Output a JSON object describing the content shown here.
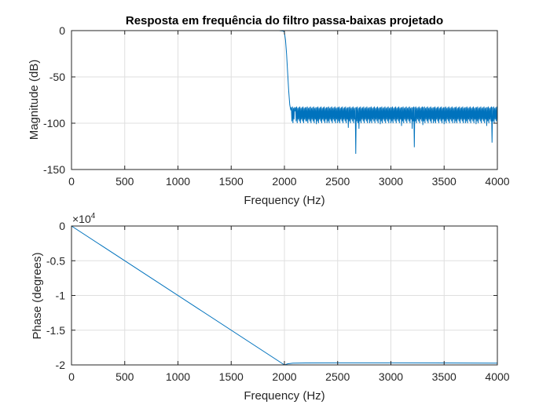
{
  "chart_data": [
    {
      "type": "line",
      "title": "Resposta em frequência do filtro passa-baixas projetado",
      "xlabel": "Frequency (Hz)",
      "ylabel": "Magnitude (dB)",
      "xlim": [
        0,
        4000
      ],
      "ylim": [
        -150,
        0
      ],
      "xticks": [
        0,
        500,
        1000,
        1500,
        2000,
        2500,
        3000,
        3500,
        4000
      ],
      "yticks": [
        0,
        -50,
        -100,
        -150
      ],
      "xtick_labels": [
        "0",
        "500",
        "1000",
        "1500",
        "2000",
        "2500",
        "3000",
        "3500",
        "4000"
      ],
      "ytick_labels": [
        "0",
        "-50",
        "-100",
        "-150"
      ],
      "grid": true,
      "line_color": "#0072BD",
      "series": [
        {
          "x": [
            0,
            500,
            1000,
            1500,
            1950,
            1990,
            2000,
            2010,
            2020,
            2030,
            2040,
            2050,
            2060,
            2100,
            2200,
            2300,
            2400,
            2500,
            2600,
            2670,
            2700,
            2800,
            2900,
            3000,
            3100,
            3200,
            3220,
            3300,
            3400,
            3500,
            3600,
            3700,
            3800,
            3900,
            3950,
            4000
          ],
          "y": [
            0,
            0,
            0,
            0,
            0,
            -0.5,
            -2,
            -10,
            -25,
            -45,
            -65,
            -80,
            -86,
            -87,
            -98,
            -101,
            -100,
            -100,
            -105,
            -133,
            -106,
            -100,
            -101,
            -100,
            -103,
            -106,
            -126,
            -102,
            -100,
            -101,
            -100,
            -100,
            -101,
            -103,
            -121,
            -100
          ],
          "envelope_top": -82
        }
      ]
    },
    {
      "type": "line",
      "xlabel": "Frequency (Hz)",
      "ylabel": "Phase (degrees)",
      "exponent_label": "×10^4",
      "xlim": [
        0,
        4000
      ],
      "ylim": [
        -2,
        0
      ],
      "xticks": [
        0,
        500,
        1000,
        1500,
        2000,
        2500,
        3000,
        3500,
        4000
      ],
      "yticks": [
        0,
        -0.5,
        -1,
        -1.5,
        -2
      ],
      "xtick_labels": [
        "0",
        "500",
        "1000",
        "1500",
        "2000",
        "2500",
        "3000",
        "3500",
        "4000"
      ],
      "ytick_labels": [
        "0",
        "-0.5",
        "-1",
        "-1.5",
        "-2"
      ],
      "grid": true,
      "line_color": "#0072BD",
      "series": [
        {
          "x": [
            0,
            2000,
            2030,
            2080,
            2200,
            2500,
            3000,
            3500,
            4000
          ],
          "y": [
            0,
            -2.0,
            -1.985,
            -1.975,
            -1.972,
            -1.97,
            -1.97,
            -1.972,
            -1.975
          ]
        }
      ]
    }
  ]
}
